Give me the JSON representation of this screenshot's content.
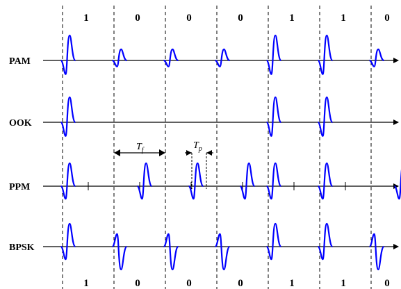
{
  "bits": [
    "1",
    "0",
    "0",
    "0",
    "1",
    "1",
    "0"
  ],
  "rows": [
    {
      "label": "PAM",
      "key": "pam"
    },
    {
      "label": "OOK",
      "key": "ook"
    },
    {
      "label": "PPM",
      "key": "ppm"
    },
    {
      "label": "BPSK",
      "key": "bpsk"
    }
  ],
  "annotations": {
    "frame_symbol": "T",
    "frame_sub": "f",
    "pulse_symbol": "T",
    "pulse_sub": "p"
  },
  "colors": {
    "pulse": "#0000ff",
    "axis": "#000000",
    "divider": "#000000"
  }
}
